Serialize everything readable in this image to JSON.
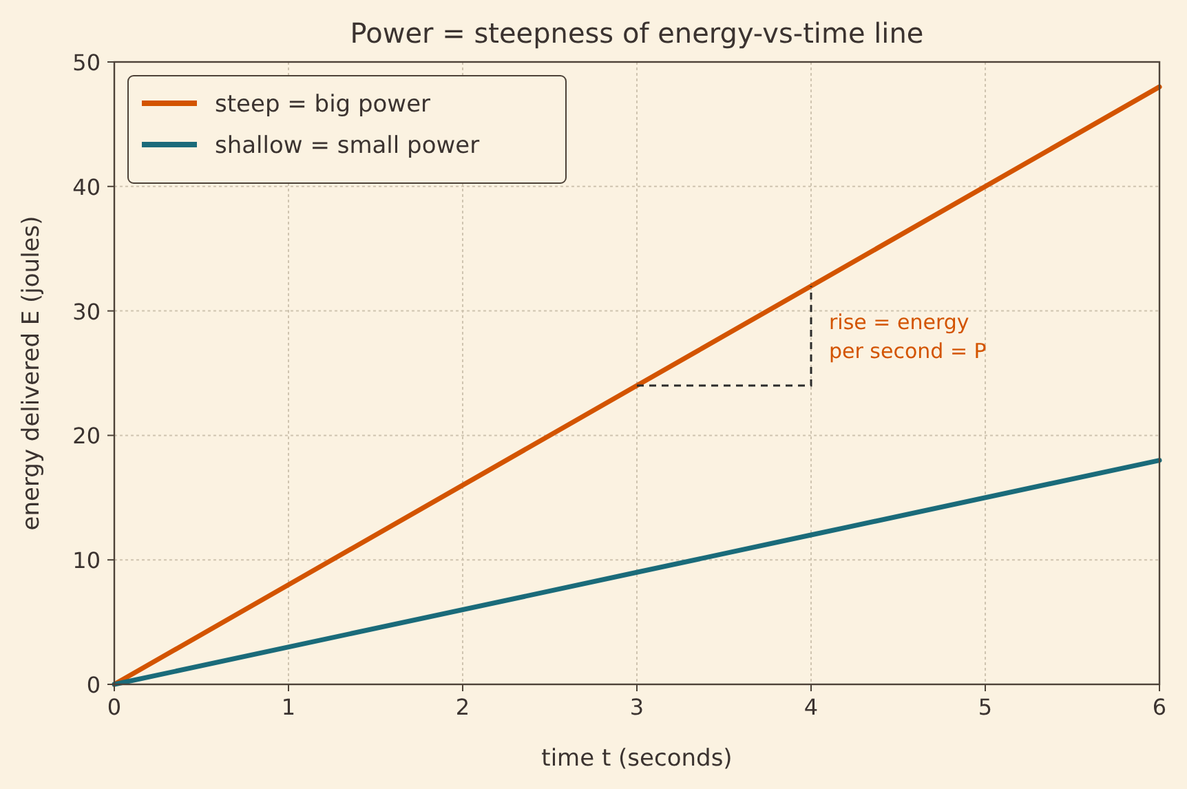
{
  "chart_data": {
    "type": "line",
    "title": "Power = steepness of energy-vs-time line",
    "xlabel": "time  t  (seconds)",
    "ylabel": "energy delivered  E  (joules)",
    "x": [
      0,
      3,
      4,
      6
    ],
    "series": [
      {
        "name": "steep = big power",
        "color": "#d35400",
        "values": [
          0,
          24,
          32,
          48
        ]
      },
      {
        "name": "shallow = small power",
        "color": "#1a6b7a",
        "values": [
          0,
          9,
          12,
          18
        ]
      }
    ],
    "xlim": [
      0,
      6
    ],
    "ylim": [
      0,
      50
    ],
    "xticks": [
      0,
      1,
      2,
      3,
      4,
      5,
      6
    ],
    "yticks": [
      0,
      10,
      20,
      30,
      40,
      50
    ],
    "grid": true,
    "legend": "top left",
    "annotations": [
      "rise = energy\nper second = P"
    ]
  }
}
